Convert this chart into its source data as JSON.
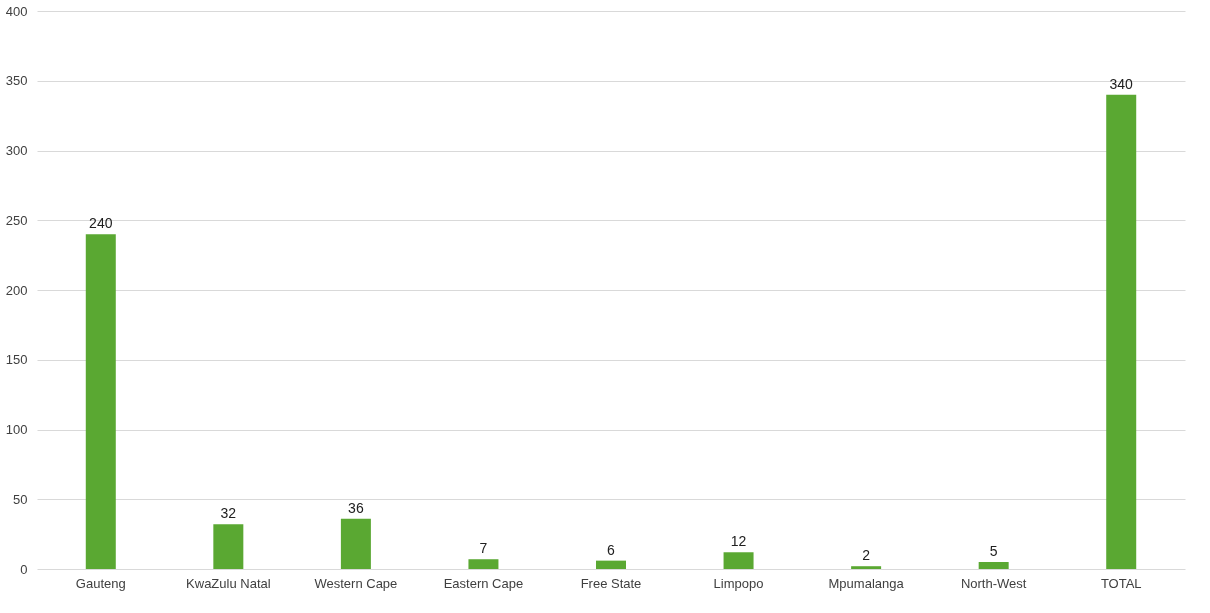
{
  "chart_data": {
    "type": "bar",
    "categories": [
      "Gauteng",
      "KwaZulu Natal",
      "Western Cape",
      "Eastern Cape",
      "Free State",
      "Limpopo",
      "Mpumalanga",
      "North-West",
      "TOTAL"
    ],
    "values": [
      240,
      32,
      36,
      7,
      6,
      12,
      2,
      5,
      340
    ],
    "color": "#5aa832",
    "ylim": [
      0,
      400
    ],
    "yticks": [
      0,
      50,
      100,
      150,
      200,
      250,
      300,
      350,
      400
    ],
    "grid": "y",
    "data_labels": true
  }
}
